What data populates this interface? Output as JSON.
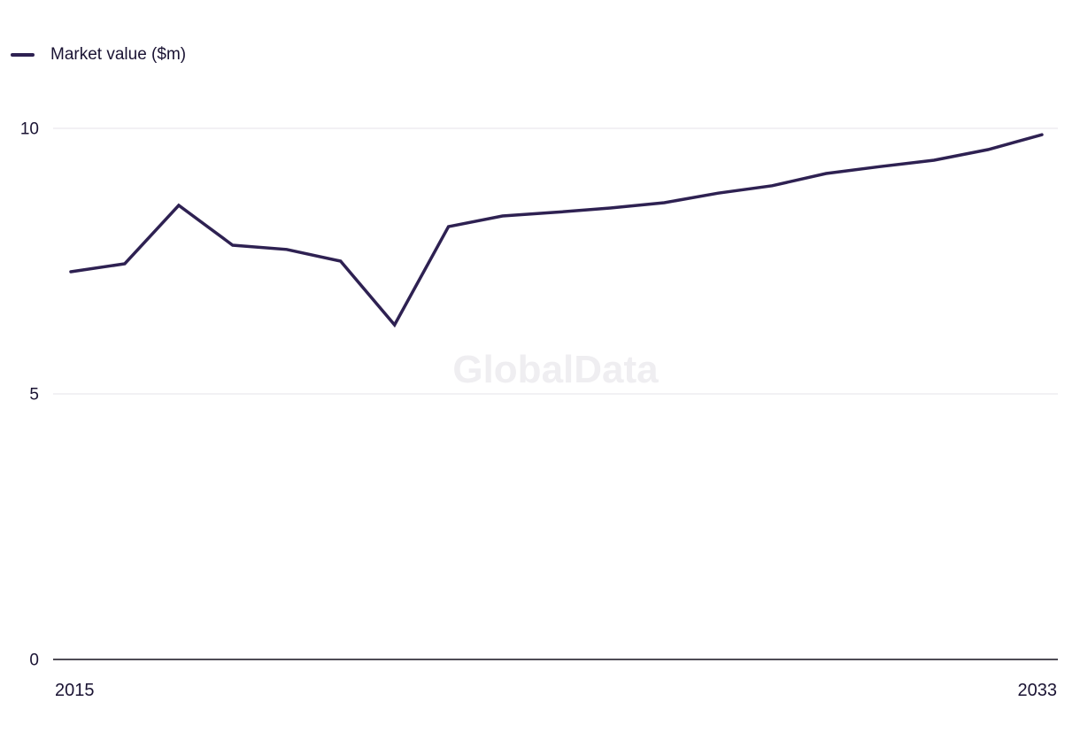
{
  "chart_data": {
    "type": "line",
    "title": "",
    "x": [
      2015,
      2016,
      2017,
      2018,
      2019,
      2020,
      2021,
      2022,
      2023,
      2024,
      2025,
      2026,
      2027,
      2028,
      2029,
      2030,
      2031,
      2032,
      2033
    ],
    "series": [
      {
        "name": "Market value ($m)",
        "color": "#2e2152",
        "values": [
          7.3,
          7.45,
          8.55,
          7.8,
          7.72,
          7.5,
          6.3,
          8.15,
          8.35,
          8.42,
          8.5,
          8.6,
          8.78,
          8.92,
          9.15,
          9.28,
          9.4,
          9.6,
          9.88
        ]
      }
    ],
    "xlabel": "",
    "ylabel": "",
    "ylim": [
      0,
      10
    ],
    "yticks": [
      0,
      5,
      10
    ],
    "x_tick_labels_shown": [
      "2015",
      "2033"
    ],
    "grid": "horizontal",
    "legend_position": "top-left",
    "watermark": "GlobalData"
  },
  "colors": {
    "line": "#2e2152",
    "text": "#1a1333",
    "grid": "#e4e3e8",
    "axis": "#15101f",
    "watermark": "#efeef1"
  }
}
